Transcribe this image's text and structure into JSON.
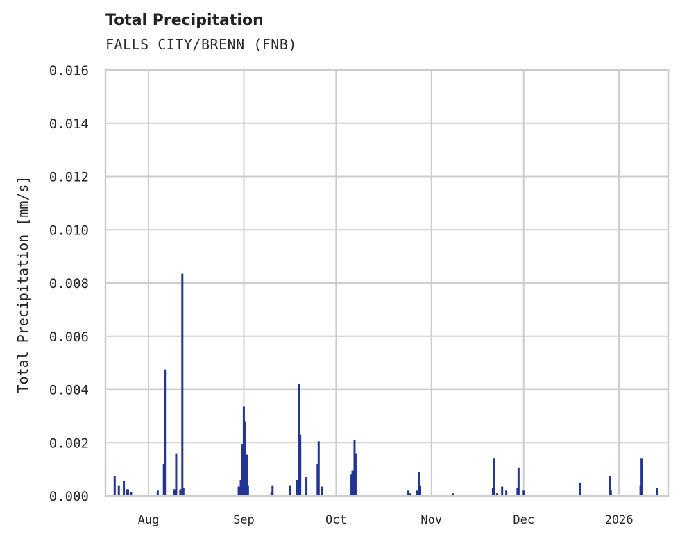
{
  "header": {
    "title": "Total Precipitation",
    "subtitle": "FALLS CITY/BRENN (FNB)"
  },
  "colors": {
    "bar": "#233592",
    "grid": "#cccccc",
    "frame": "#cccccc",
    "text": "#262626"
  },
  "chart_data": {
    "type": "bar",
    "title": "Total Precipitation",
    "subtitle": "FALLS CITY/BRENN (FNB)",
    "xlabel": "",
    "ylabel": "Total Precipitation [mm/s]",
    "ylim": [
      0,
      0.016
    ],
    "yticks": [
      "0.000",
      "0.002",
      "0.004",
      "0.006",
      "0.008",
      "0.010",
      "0.012",
      "0.014",
      "0.016"
    ],
    "xticks": [
      "Aug",
      "Sep",
      "Oct",
      "Nov",
      "Dec",
      "2026"
    ],
    "xrange": [
      "2025-07-18",
      "2026-01-17"
    ],
    "grid": true,
    "legend": null,
    "series": [
      {
        "name": "Total Precipitation",
        "points": [
          {
            "date": "2025-07-20",
            "value": 5e-05
          },
          {
            "date": "2025-07-21",
            "value": 5e-05
          },
          {
            "date": "2025-07-21",
            "value": 0.00075
          },
          {
            "date": "2025-07-22",
            "value": 0.0004
          },
          {
            "date": "2025-07-24",
            "value": 0.00055
          },
          {
            "date": "2025-07-25",
            "value": 0.00025
          },
          {
            "date": "2025-07-25",
            "value": 0.00025
          },
          {
            "date": "2025-07-26",
            "value": 0.00015
          },
          {
            "date": "2025-08-04",
            "value": 0.0002
          },
          {
            "date": "2025-08-06",
            "value": 0.00475
          },
          {
            "date": "2025-08-06",
            "value": 0.0012
          },
          {
            "date": "2025-08-09",
            "value": 0.00025
          },
          {
            "date": "2025-08-10",
            "value": 0.0016
          },
          {
            "date": "2025-08-11",
            "value": 0.00025
          },
          {
            "date": "2025-08-12",
            "value": 0.00835
          },
          {
            "date": "2025-08-12",
            "value": 0.0003
          },
          {
            "date": "2025-08-25",
            "value": 5e-05
          },
          {
            "date": "2025-08-30",
            "value": 0.00035
          },
          {
            "date": "2025-08-31",
            "value": 0.0006
          },
          {
            "date": "2025-08-31",
            "value": 0.00195
          },
          {
            "date": "2025-09-01",
            "value": 0.00335
          },
          {
            "date": "2025-09-01",
            "value": 0.0028
          },
          {
            "date": "2025-09-02",
            "value": 0.00155
          },
          {
            "date": "2025-09-02",
            "value": 0.0004
          },
          {
            "date": "2025-09-10",
            "value": 0.00015
          },
          {
            "date": "2025-09-10",
            "value": 0.0004
          },
          {
            "date": "2025-09-16",
            "value": 0.0004
          },
          {
            "date": "2025-09-18",
            "value": 0.0006
          },
          {
            "date": "2025-09-19",
            "value": 0.0042
          },
          {
            "date": "2025-09-19",
            "value": 0.0023
          },
          {
            "date": "2025-09-20",
            "value": 5e-05
          },
          {
            "date": "2025-09-21",
            "value": 0.0007
          },
          {
            "date": "2025-09-23",
            "value": 5e-05
          },
          {
            "date": "2025-09-25",
            "value": 0.00205
          },
          {
            "date": "2025-09-25",
            "value": 0.0012
          },
          {
            "date": "2025-09-26",
            "value": 0.00035
          },
          {
            "date": "2025-10-06",
            "value": 0.0008
          },
          {
            "date": "2025-10-06",
            "value": 0.00095
          },
          {
            "date": "2025-10-07",
            "value": 0.0021
          },
          {
            "date": "2025-10-07",
            "value": 0.0016
          },
          {
            "date": "2025-10-14",
            "value": 5e-05
          },
          {
            "date": "2025-10-24",
            "value": 0.0002
          },
          {
            "date": "2025-10-25",
            "value": 0.0001
          },
          {
            "date": "2025-10-27",
            "value": 0.0002
          },
          {
            "date": "2025-10-28",
            "value": 0.0009
          },
          {
            "date": "2025-10-28",
            "value": 0.0004
          },
          {
            "date": "2025-11-08",
            "value": 0.0001
          },
          {
            "date": "2025-11-21",
            "value": 0.0014
          },
          {
            "date": "2025-11-21",
            "value": 0.0003
          },
          {
            "date": "2025-11-22",
            "value": 0.0001
          },
          {
            "date": "2025-11-24",
            "value": 0.00035
          },
          {
            "date": "2025-11-25",
            "value": 0.0002
          },
          {
            "date": "2025-11-29",
            "value": 0.0003
          },
          {
            "date": "2025-11-29",
            "value": 0.00105
          },
          {
            "date": "2025-12-01",
            "value": 0.0002
          },
          {
            "date": "2025-12-19",
            "value": 0.0005
          },
          {
            "date": "2025-12-29",
            "value": 0.00075
          },
          {
            "date": "2025-12-29",
            "value": 0.0002
          },
          {
            "date": "2026-01-03",
            "value": 5e-05
          },
          {
            "date": "2026-01-08",
            "value": 0.0014
          },
          {
            "date": "2026-01-08",
            "value": 0.0004
          },
          {
            "date": "2026-01-13",
            "value": 0.0003
          }
        ]
      }
    ]
  }
}
